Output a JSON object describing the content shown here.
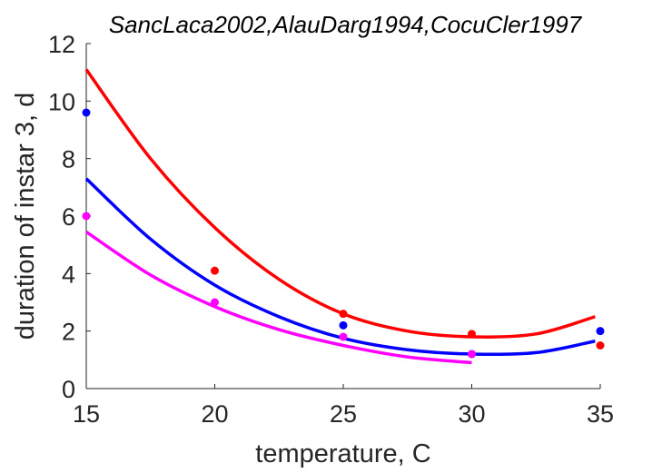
{
  "chart_data": {
    "type": "scatter",
    "title": "SancLaca2002,AlauDarg1994,CocuCler1997",
    "xlabel": "temperature, C",
    "ylabel": "duration of instar 3, d",
    "xlim": [
      15,
      35
    ],
    "ylim": [
      0,
      12
    ],
    "xticks": [
      15,
      20,
      25,
      30,
      35
    ],
    "yticks": [
      0,
      2,
      4,
      6,
      8,
      10,
      12
    ],
    "xtick_labels": [
      "15",
      "20",
      "25",
      "30",
      "35"
    ],
    "ytick_labels": [
      "0",
      "2",
      "4",
      "6",
      "8",
      "10",
      "12"
    ],
    "grid": false,
    "legend": "none",
    "series": [
      {
        "color": "#ff0000",
        "points": {
          "x": [
            20,
            25,
            30,
            35
          ],
          "y": [
            4.1,
            2.6,
            1.9,
            1.5
          ]
        },
        "curve": {
          "x": [
            15,
            17.5,
            20,
            22.5,
            25,
            27.5,
            30,
            32.5,
            34.8
          ],
          "y": [
            11.1,
            8.0,
            5.6,
            3.8,
            2.6,
            2.0,
            1.8,
            1.9,
            2.5
          ]
        }
      },
      {
        "color": "#0000ff",
        "points": {
          "x": [
            15,
            25,
            30,
            35
          ],
          "y": [
            9.6,
            2.2,
            1.2,
            2.0
          ]
        },
        "curve": {
          "x": [
            15,
            17.5,
            20,
            22.5,
            25,
            27.5,
            30,
            32.5,
            34.8
          ],
          "y": [
            7.3,
            5.2,
            3.6,
            2.5,
            1.75,
            1.35,
            1.2,
            1.25,
            1.65
          ]
        }
      },
      {
        "color": "#ff00ff",
        "points": {
          "x": [
            15,
            20,
            25,
            30
          ],
          "y": [
            6.0,
            3.0,
            1.8,
            1.2
          ]
        },
        "curve": {
          "x": [
            15,
            17.5,
            20,
            22.5,
            25,
            27.5,
            30
          ],
          "y": [
            5.45,
            3.95,
            2.85,
            2.05,
            1.5,
            1.1,
            0.9
          ]
        }
      }
    ]
  }
}
